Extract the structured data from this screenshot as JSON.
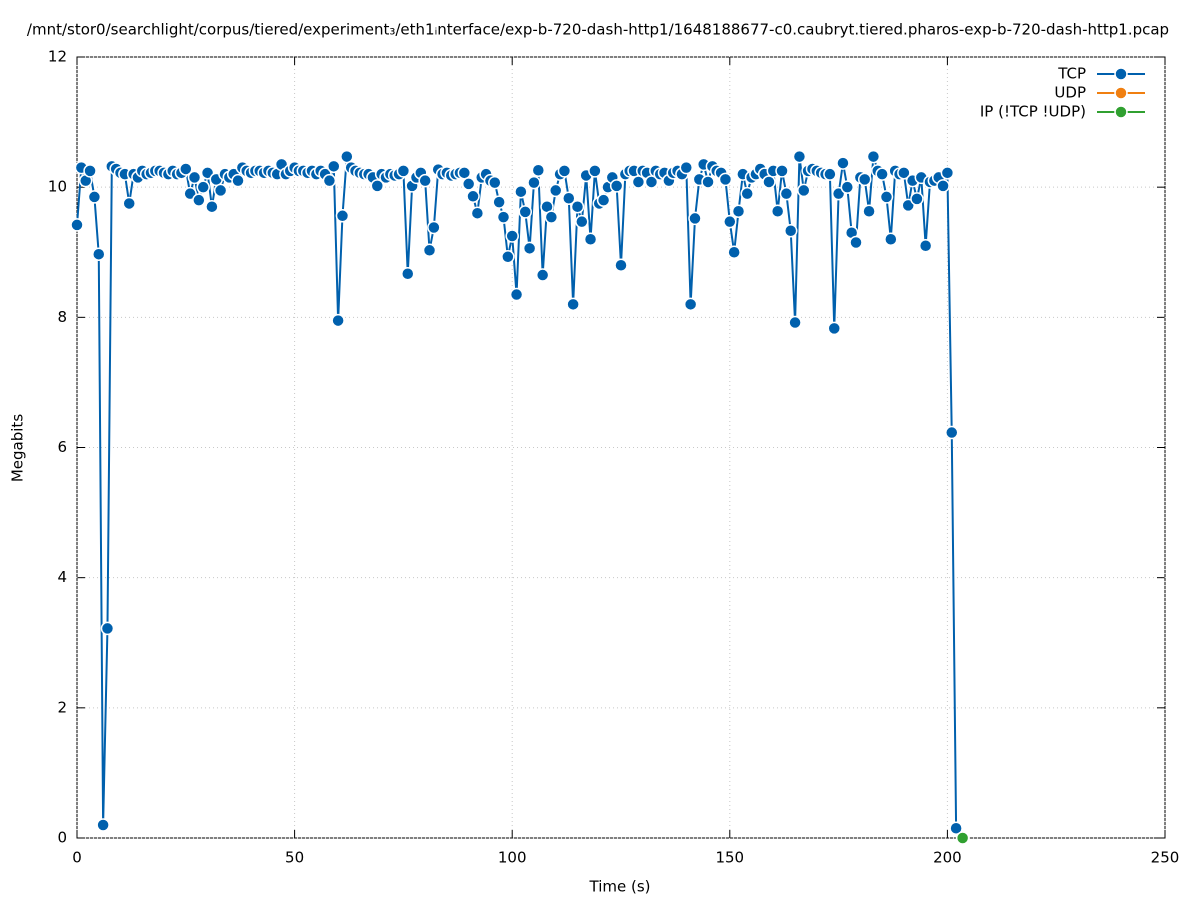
{
  "chart_data": {
    "type": "line",
    "title": "/mnt/stor0/searchlight/corpus/tiered/experiment₃/eth1ᵢnterface/exp-b-720-dash-http1/1648188677-c0.caubryt.tiered.pharos-exp-b-720-dash-http1.pcap",
    "x_label": "Time (s)",
    "y_label": "Megabits",
    "xlim": [
      0,
      250
    ],
    "xticks": [
      0,
      50,
      100,
      150,
      200,
      250
    ],
    "ylim": [
      0,
      12
    ],
    "yticks": [
      0,
      2,
      4,
      6,
      8,
      10,
      12
    ],
    "grid": true,
    "legend": "top-right",
    "series": [
      {
        "name": "TCP",
        "color": "#0060ad",
        "x": [
          0,
          1,
          2,
          3,
          4,
          5,
          6,
          7,
          8,
          9,
          10,
          11,
          12,
          13,
          14,
          15,
          16,
          17,
          18,
          19,
          20,
          21,
          22,
          23,
          24,
          25,
          26,
          27,
          28,
          29,
          30,
          31,
          32,
          33,
          34,
          35,
          36,
          37,
          38,
          39,
          40,
          41,
          42,
          43,
          44,
          45,
          46,
          47,
          48,
          49,
          50,
          51,
          52,
          53,
          54,
          55,
          56,
          57,
          58,
          59,
          60,
          61,
          62,
          63,
          64,
          65,
          66,
          67,
          68,
          69,
          70,
          71,
          72,
          73,
          74,
          75,
          76,
          77,
          78,
          79,
          80,
          81,
          82,
          83,
          84,
          85,
          86,
          87,
          88,
          89,
          90,
          91,
          92,
          93,
          94,
          95,
          96,
          97,
          98,
          99,
          100,
          101,
          102,
          103,
          104,
          105,
          106,
          107,
          108,
          109,
          110,
          111,
          112,
          113,
          114,
          115,
          116,
          117,
          118,
          119,
          120,
          121,
          122,
          123,
          124,
          125,
          126,
          127,
          128,
          129,
          130,
          131,
          132,
          133,
          134,
          135,
          136,
          137,
          138,
          139,
          140,
          141,
          142,
          143,
          144,
          145,
          146,
          147,
          148,
          149,
          150,
          151,
          152,
          153,
          154,
          155,
          156,
          157,
          158,
          159,
          160,
          161,
          162,
          163,
          164,
          165,
          166,
          167,
          168,
          169,
          170,
          171,
          172,
          173,
          174,
          175,
          176,
          177,
          178,
          179,
          180,
          181,
          182,
          183,
          184,
          185,
          186,
          187,
          188,
          189,
          190,
          191,
          192,
          193,
          194,
          195,
          196,
          197,
          198,
          199,
          200,
          201,
          202
        ],
        "values": [
          9.42,
          10.3,
          10.1,
          10.25,
          9.85,
          8.97,
          0.2,
          3.22,
          10.32,
          10.28,
          10.22,
          10.2,
          9.75,
          10.2,
          10.15,
          10.25,
          10.2,
          10.22,
          10.25,
          10.25,
          10.22,
          10.2,
          10.25,
          10.2,
          10.22,
          10.28,
          9.9,
          10.15,
          9.8,
          10.0,
          10.22,
          9.7,
          10.12,
          9.95,
          10.2,
          10.15,
          10.2,
          10.1,
          10.3,
          10.25,
          10.22,
          10.25,
          10.25,
          10.22,
          10.25,
          10.22,
          10.2,
          10.35,
          10.2,
          10.25,
          10.3,
          10.25,
          10.25,
          10.22,
          10.25,
          10.2,
          10.25,
          10.2,
          10.1,
          10.32,
          7.95,
          9.56,
          10.47,
          10.3,
          10.25,
          10.22,
          10.2,
          10.2,
          10.15,
          10.02,
          10.2,
          10.15,
          10.2,
          10.18,
          10.2,
          10.25,
          8.67,
          10.02,
          10.15,
          10.22,
          10.1,
          9.03,
          9.38,
          10.27,
          10.2,
          10.22,
          10.18,
          10.2,
          10.22,
          10.22,
          10.05,
          9.86,
          9.6,
          10.15,
          10.2,
          10.1,
          10.07,
          9.77,
          9.54,
          8.93,
          9.25,
          8.35,
          9.93,
          9.62,
          9.06,
          10.07,
          10.26,
          8.65,
          9.7,
          9.54,
          9.95,
          10.2,
          10.25,
          9.83,
          8.2,
          9.7,
          9.47,
          10.18,
          9.2,
          10.25,
          9.75,
          9.8,
          10.0,
          10.15,
          10.02,
          8.8,
          10.2,
          10.25,
          10.25,
          10.08,
          10.25,
          10.22,
          10.08,
          10.25,
          10.2,
          10.22,
          10.1,
          10.22,
          10.25,
          10.2,
          10.3,
          8.2,
          9.52,
          10.12,
          10.35,
          10.08,
          10.32,
          10.25,
          10.22,
          10.12,
          9.47,
          9.0,
          9.63,
          10.2,
          9.9,
          10.15,
          10.2,
          10.28,
          10.2,
          10.08,
          10.25,
          9.63,
          10.25,
          9.9,
          9.33,
          7.92,
          10.47,
          9.95,
          10.25,
          10.28,
          10.25,
          10.22,
          10.2,
          10.2,
          7.83,
          9.9,
          10.37,
          10.0,
          9.3,
          9.15,
          10.15,
          10.12,
          9.63,
          10.47,
          10.25,
          10.2,
          9.85,
          9.2,
          10.25,
          10.2,
          10.22,
          9.72,
          10.1,
          9.82,
          10.15,
          9.1,
          10.08,
          10.1,
          10.15,
          10.02,
          10.22,
          6.23,
          0.15
        ]
      },
      {
        "name": "UDP",
        "color": "#f07f10",
        "x": [],
        "values": []
      },
      {
        "name": "IP (!TCP  !UDP)",
        "color": "#30a030",
        "x": [
          203.5
        ],
        "values": [
          0
        ]
      }
    ]
  }
}
